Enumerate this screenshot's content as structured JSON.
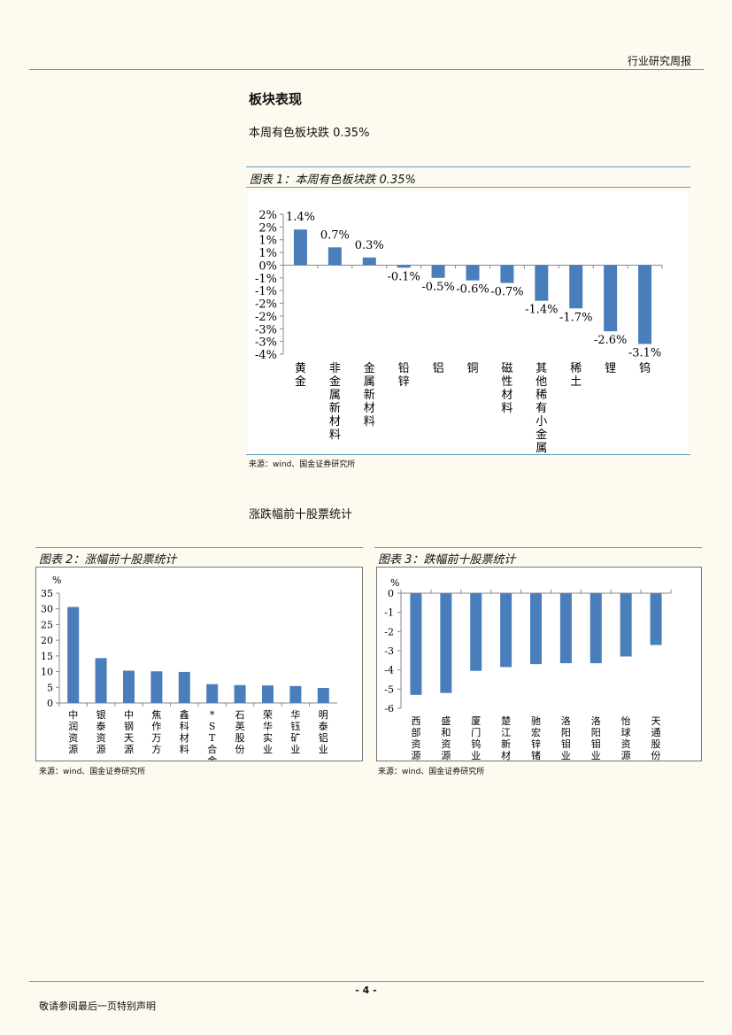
{
  "header": {
    "report_type": "行业研究周报"
  },
  "section": {
    "title": "板块表现",
    "intro": "本周有色板块跌 0.35%",
    "subtitle2": "涨跌幅前十股票统计"
  },
  "figure1": {
    "title": "图表 1：本周有色板块跌 0.35%",
    "source": "来源：wind、国金证券研究所"
  },
  "figure2": {
    "title": "图表 2：涨幅前十股票统计",
    "source": "来源：wind、国金证券研究所"
  },
  "figure3": {
    "title": "图表 3：跌幅前十股票统计",
    "source": "来源：wind、国金证券研究所"
  },
  "footer": {
    "page": "- 4 -",
    "note": "敬请参阅最后一页特别声明"
  },
  "colors": {
    "bar": "#4a7ebb",
    "rule": "#5aa0c8"
  },
  "chart_data": [
    {
      "type": "bar",
      "categories": [
        "黄金",
        "非金属新材料",
        "金属新材料",
        "铅锌",
        "铝",
        "铜",
        "磁性材料",
        "其他稀有小金属",
        "稀土",
        "锂",
        "钨"
      ],
      "values": [
        1.4,
        0.7,
        0.3,
        -0.1,
        -0.5,
        -0.6,
        -0.7,
        -1.4,
        -1.7,
        -2.6,
        -3.1
      ],
      "data_labels": [
        "1.4%",
        "0.7%",
        "0.3%",
        "-0.1%",
        "-0.5%",
        "-0.6%",
        "-0.7%",
        "-1.4%",
        "-1.7%",
        "-2.6%",
        "-3.1%"
      ],
      "yticks": [
        "2%",
        "2%",
        "1%",
        "1%",
        "0%",
        "-1%",
        "-1%",
        "-2%",
        "-2%",
        "-3%",
        "-3%",
        "-4%"
      ],
      "ylim": [
        -3.5,
        2.0
      ],
      "ylabel": "",
      "xlabel": ""
    },
    {
      "type": "bar",
      "categories": [
        "中润资源",
        "银泰资源",
        "中钢天源",
        "焦作万方",
        "鑫科材料",
        "*ST合金",
        "石英股份",
        "荣华实业",
        "华钰矿业",
        "明泰铝业"
      ],
      "values": [
        30.6,
        14.3,
        10.3,
        10.1,
        9.9,
        6.0,
        5.7,
        5.6,
        5.4,
        4.8
      ],
      "yticks": [
        "35",
        "30",
        "25",
        "20",
        "15",
        "10",
        "5",
        "0"
      ],
      "ylim": [
        0,
        35
      ],
      "ylabel": "%"
    },
    {
      "type": "bar",
      "categories": [
        "西部资源",
        "盛和资源",
        "厦门钨业",
        "楚江新材",
        "驰宏锌锗",
        "洛阳钼业",
        "洛阳钼业",
        "怡球资源",
        "天通股份"
      ],
      "values": [
        -5.3,
        -5.2,
        -4.05,
        -3.85,
        -3.7,
        -3.65,
        -3.65,
        -3.3,
        -2.7
      ],
      "yticks": [
        "0",
        "-1",
        "-2",
        "-3",
        "-4",
        "-5",
        "-6"
      ],
      "ylim": [
        -6,
        0
      ],
      "ylabel": "%"
    }
  ]
}
